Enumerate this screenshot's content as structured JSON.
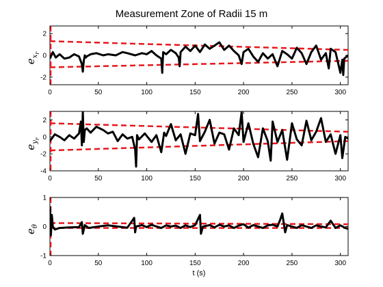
{
  "title": "Measurement Zone of Radii 15 m",
  "chart_data": [
    {
      "type": "line",
      "ylabel_main": "e",
      "ylabel_sub": "x",
      "ylabel_subsub": "r",
      "xlim": [
        0,
        308
      ],
      "ylim": [
        -2.7,
        2.7
      ],
      "xticks": [
        0,
        50,
        100,
        150,
        200,
        250,
        300
      ],
      "yticks": [
        -2,
        0,
        2
      ],
      "series": [
        {
          "x": [
            0,
            3,
            6,
            10,
            15,
            20,
            25,
            30,
            33,
            34,
            35,
            36,
            37,
            38,
            42,
            48,
            55,
            60,
            68,
            75,
            80,
            88,
            95,
            100,
            105,
            110,
            115,
            116,
            117,
            120,
            125,
            130,
            133,
            134,
            135,
            140,
            145,
            150,
            155,
            160,
            165,
            170,
            175,
            180,
            185,
            190,
            195,
            198,
            200,
            205,
            210,
            215,
            220,
            225,
            230,
            235,
            240,
            245,
            250,
            255,
            260,
            265,
            270,
            275,
            280,
            285,
            288,
            290,
            295,
            300,
            302,
            303,
            304,
            308
          ],
          "y": [
            -0.3,
            0.3,
            -0.2,
            0.1,
            -0.3,
            -0.2,
            0.1,
            -0.1,
            -0.8,
            -1.5,
            -0.5,
            0.0,
            -0.2,
            -0.1,
            0.1,
            0.2,
            0.0,
            0.1,
            0.0,
            0.3,
            0.2,
            0.0,
            0.2,
            0.1,
            0.4,
            0.0,
            -0.3,
            -1.6,
            0.3,
            0.1,
            0.5,
            0.2,
            -0.2,
            -1.0,
            0.3,
            0.8,
            0.4,
            0.9,
            0.3,
            1.0,
            0.6,
            0.9,
            1.2,
            0.5,
            0.9,
            0.4,
            0.0,
            -0.8,
            0.3,
            0.6,
            -0.1,
            -0.6,
            0.2,
            -0.3,
            0.1,
            -1.0,
            0.4,
            0.1,
            -0.3,
            0.7,
            0.2,
            -0.8,
            0.3,
            0.9,
            -0.4,
            0.2,
            -1.2,
            0.6,
            0.3,
            -1.6,
            -0.4,
            -1.8,
            -0.3,
            0.0
          ]
        }
      ],
      "bounds": {
        "x": [
          0,
          308
        ],
        "upper_start": 1.3,
        "upper_end": 0.5,
        "lower_start": -1.1,
        "lower_end": -0.5
      }
    },
    {
      "type": "line",
      "ylabel_main": "e",
      "ylabel_sub": "y",
      "ylabel_subsub": "r",
      "xlim": [
        0,
        308
      ],
      "ylim": [
        -4,
        3
      ],
      "xticks": [
        0,
        50,
        100,
        150,
        200,
        250,
        300
      ],
      "yticks": [
        -4,
        -2,
        0,
        2
      ],
      "series": [
        {
          "x": [
            0,
            5,
            10,
            15,
            20,
            25,
            30,
            32,
            33,
            34,
            35,
            36,
            38,
            42,
            48,
            55,
            60,
            65,
            70,
            75,
            80,
            85,
            88,
            89,
            90,
            92,
            98,
            105,
            110,
            115,
            118,
            120,
            125,
            130,
            135,
            140,
            145,
            150,
            153,
            155,
            160,
            165,
            170,
            175,
            180,
            185,
            190,
            195,
            198,
            200,
            205,
            210,
            215,
            220,
            225,
            228,
            230,
            235,
            240,
            245,
            250,
            255,
            260,
            265,
            270,
            275,
            280,
            285,
            290,
            295,
            300,
            302,
            305,
            308
          ],
          "y": [
            -0.5,
            0.3,
            0.0,
            -0.4,
            0.2,
            -0.2,
            0.4,
            1.8,
            -1.0,
            2.9,
            -0.6,
            0.8,
            1.0,
            0.5,
            1.2,
            0.8,
            0.4,
            0.6,
            -0.5,
            0.3,
            -0.2,
            0.0,
            -1.5,
            -3.5,
            0.2,
            -0.3,
            0.4,
            -0.6,
            0.2,
            -1.8,
            0.5,
            0.1,
            1.5,
            -0.4,
            0.3,
            -2.0,
            0.4,
            0.2,
            2.7,
            -0.5,
            0.6,
            2.0,
            -0.8,
            0.5,
            0.3,
            -1.5,
            1.0,
            0.2,
            2.9,
            -0.6,
            1.6,
            -0.8,
            -2.4,
            1.0,
            -0.5,
            -2.8,
            1.8,
            -0.6,
            0.8,
            -2.7,
            1.6,
            -0.3,
            -1.0,
            1.9,
            -0.4,
            0.6,
            2.2,
            -0.6,
            0.3,
            -2.0,
            0.2,
            -2.5,
            0.0,
            -0.2
          ]
        }
      ],
      "bounds": {
        "x": [
          0,
          308
        ],
        "upper_start": 1.6,
        "upper_end": 0.6,
        "lower_start": -1.6,
        "lower_end": -0.5
      }
    },
    {
      "type": "line",
      "ylabel_main": "e",
      "ylabel_sub": "θ",
      "ylabel_subsub": "",
      "xlim": [
        0,
        308
      ],
      "ylim": [
        -1,
        1
      ],
      "xticks": [
        0,
        50,
        100,
        150,
        200,
        250,
        300
      ],
      "yticks": [
        -1,
        0,
        1
      ],
      "xlabel": "t (s)",
      "series": [
        {
          "x": [
            0,
            1,
            2,
            3,
            5,
            10,
            20,
            30,
            33,
            34,
            36,
            40,
            50,
            60,
            70,
            80,
            87,
            88,
            89,
            95,
            100,
            105,
            110,
            115,
            120,
            125,
            130,
            135,
            140,
            145,
            150,
            155,
            156,
            158,
            165,
            170,
            175,
            180,
            185,
            190,
            195,
            200,
            205,
            210,
            215,
            220,
            225,
            230,
            235,
            238,
            240,
            243,
            245,
            250,
            255,
            260,
            265,
            270,
            275,
            280,
            285,
            290,
            295,
            300,
            305,
            308
          ],
          "y": [
            0.7,
            -0.3,
            0.4,
            0.0,
            -0.1,
            -0.05,
            -0.03,
            -0.02,
            0.15,
            -0.25,
            0.05,
            -0.05,
            0.0,
            0.04,
            0.0,
            -0.04,
            0.3,
            -0.2,
            0.0,
            0.05,
            -0.02,
            0.06,
            0.0,
            -0.05,
            0.04,
            0.0,
            0.03,
            -0.05,
            0.04,
            -0.02,
            0.05,
            0.4,
            -0.25,
            0.0,
            0.05,
            -0.03,
            0.06,
            0.0,
            0.04,
            -0.05,
            0.03,
            0.08,
            -0.04,
            0.05,
            0.0,
            -0.05,
            0.04,
            0.06,
            0.0,
            0.25,
            0.45,
            -0.2,
            0.05,
            0.0,
            -0.05,
            0.05,
            0.0,
            -0.05,
            0.04,
            0.0,
            -0.03,
            0.2,
            -0.05,
            0.04,
            -0.05,
            -0.08
          ]
        }
      ],
      "bounds": {
        "x": [
          0,
          308
        ],
        "upper_start": 0.12,
        "upper_end": 0.08,
        "lower_start": -0.05,
        "lower_end": -0.05
      }
    }
  ]
}
